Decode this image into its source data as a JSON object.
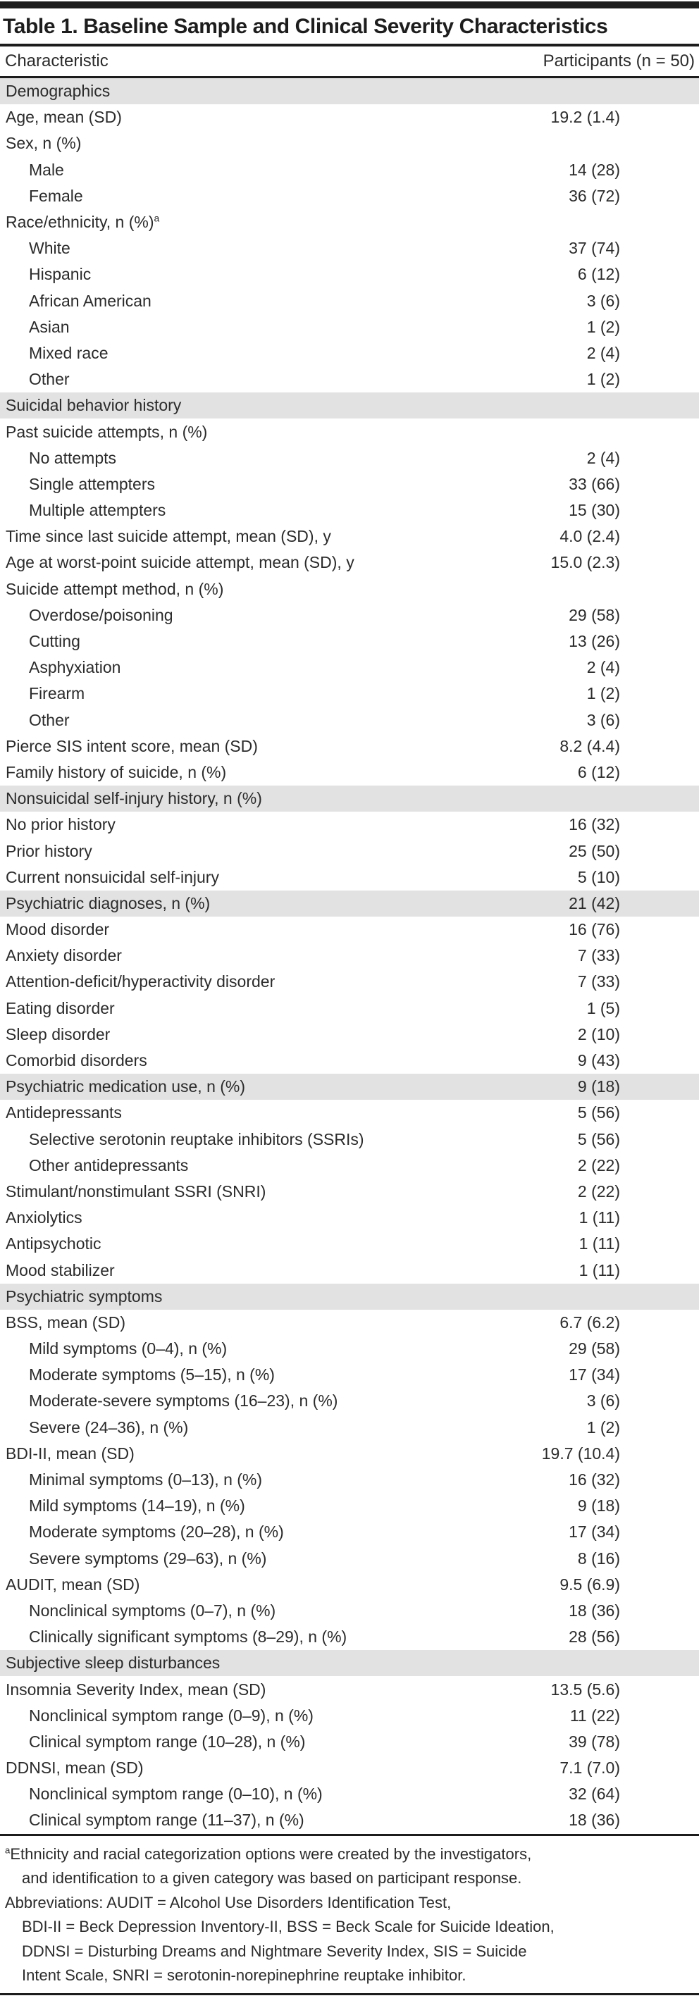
{
  "title": "Table 1. Baseline Sample and Clinical Severity Characteristics",
  "header": {
    "characteristic": "Characteristic",
    "participants": "Participants (n = 50)"
  },
  "rows": [
    {
      "type": "section",
      "indent": 0,
      "label": "Demographics",
      "value": ""
    },
    {
      "type": "row",
      "indent": 0,
      "label": "Age, mean (SD)",
      "value": "19.2 (1.4)"
    },
    {
      "type": "row",
      "indent": 0,
      "label": "Sex, n (%)",
      "value": ""
    },
    {
      "type": "row",
      "indent": 1,
      "label": "Male",
      "value": "14 (28)"
    },
    {
      "type": "row",
      "indent": 1,
      "label": "Female",
      "value": "36 (72)"
    },
    {
      "type": "row",
      "indent": 0,
      "label": "Race/ethnicity, n (%)",
      "sup": "a",
      "value": ""
    },
    {
      "type": "row",
      "indent": 1,
      "label": "White",
      "value": "37 (74)"
    },
    {
      "type": "row",
      "indent": 1,
      "label": "Hispanic",
      "value": "6 (12)"
    },
    {
      "type": "row",
      "indent": 1,
      "label": "African American",
      "value": "3 (6)"
    },
    {
      "type": "row",
      "indent": 1,
      "label": "Asian",
      "value": "1 (2)"
    },
    {
      "type": "row",
      "indent": 1,
      "label": "Mixed race",
      "value": "2 (4)"
    },
    {
      "type": "row",
      "indent": 1,
      "label": "Other",
      "value": "1 (2)"
    },
    {
      "type": "section",
      "indent": 0,
      "label": "Suicidal behavior history",
      "value": ""
    },
    {
      "type": "row",
      "indent": 0,
      "label": "Past suicide attempts, n (%)",
      "value": ""
    },
    {
      "type": "row",
      "indent": 1,
      "label": "No attempts",
      "value": "2 (4)"
    },
    {
      "type": "row",
      "indent": 1,
      "label": "Single attempters",
      "value": "33 (66)"
    },
    {
      "type": "row",
      "indent": 1,
      "label": "Multiple attempters",
      "value": "15 (30)"
    },
    {
      "type": "row",
      "indent": 0,
      "label": "Time since last suicide attempt, mean (SD), y",
      "value": "4.0 (2.4)"
    },
    {
      "type": "row",
      "indent": 0,
      "label": "Age at worst-point suicide attempt, mean (SD), y",
      "value": "15.0 (2.3)"
    },
    {
      "type": "row",
      "indent": 0,
      "label": "Suicide attempt method, n (%)",
      "value": ""
    },
    {
      "type": "row",
      "indent": 1,
      "label": "Overdose/poisoning",
      "value": "29 (58)"
    },
    {
      "type": "row",
      "indent": 1,
      "label": "Cutting",
      "value": "13 (26)"
    },
    {
      "type": "row",
      "indent": 1,
      "label": "Asphyxiation",
      "value": "2 (4)"
    },
    {
      "type": "row",
      "indent": 1,
      "label": "Firearm",
      "value": "1 (2)"
    },
    {
      "type": "row",
      "indent": 1,
      "label": "Other",
      "value": "3 (6)"
    },
    {
      "type": "row",
      "indent": 0,
      "label": "Pierce SIS intent score, mean (SD)",
      "value": "8.2 (4.4)"
    },
    {
      "type": "row",
      "indent": 0,
      "label": "Family history of suicide, n (%)",
      "value": "6 (12)"
    },
    {
      "type": "section",
      "indent": 0,
      "label": "Nonsuicidal self-injury history, n (%)",
      "value": ""
    },
    {
      "type": "row",
      "indent": 0,
      "label": "No prior history",
      "value": "16 (32)"
    },
    {
      "type": "row",
      "indent": 0,
      "label": "Prior history",
      "value": "25 (50)"
    },
    {
      "type": "row",
      "indent": 0,
      "label": "Current nonsuicidal self-injury",
      "value": "5 (10)"
    },
    {
      "type": "section",
      "indent": 0,
      "label": "Psychiatric diagnoses, n (%)",
      "value": "21 (42)"
    },
    {
      "type": "row",
      "indent": 0,
      "label": "Mood disorder",
      "value": "16 (76)"
    },
    {
      "type": "row",
      "indent": 0,
      "label": "Anxiety disorder",
      "value": "7 (33)"
    },
    {
      "type": "row",
      "indent": 0,
      "label": "Attention-deficit/hyperactivity disorder",
      "value": "7 (33)"
    },
    {
      "type": "row",
      "indent": 0,
      "label": "Eating disorder",
      "value": "1 (5)"
    },
    {
      "type": "row",
      "indent": 0,
      "label": "Sleep disorder",
      "value": "2 (10)"
    },
    {
      "type": "row",
      "indent": 0,
      "label": "Comorbid disorders",
      "value": "9 (43)"
    },
    {
      "type": "section",
      "indent": 0,
      "label": "Psychiatric medication use, n (%)",
      "value": "9 (18)"
    },
    {
      "type": "row",
      "indent": 0,
      "label": "Antidepressants",
      "value": "5 (56)"
    },
    {
      "type": "row",
      "indent": 1,
      "label": "Selective serotonin reuptake inhibitors (SSRIs)",
      "value": "5 (56)"
    },
    {
      "type": "row",
      "indent": 1,
      "label": "Other antidepressants",
      "value": "2 (22)"
    },
    {
      "type": "row",
      "indent": 0,
      "label": "Stimulant/nonstimulant SSRI (SNRI)",
      "value": "2 (22)"
    },
    {
      "type": "row",
      "indent": 0,
      "label": "Anxiolytics",
      "value": "1 (11)"
    },
    {
      "type": "row",
      "indent": 0,
      "label": "Antipsychotic",
      "value": "1 (11)"
    },
    {
      "type": "row",
      "indent": 0,
      "label": "Mood stabilizer",
      "value": "1 (11)"
    },
    {
      "type": "section",
      "indent": 0,
      "label": "Psychiatric symptoms",
      "value": ""
    },
    {
      "type": "row",
      "indent": 0,
      "label": "BSS, mean (SD)",
      "value": "6.7 (6.2)"
    },
    {
      "type": "row",
      "indent": 1,
      "label": "Mild symptoms (0–4), n (%)",
      "value": "29 (58)"
    },
    {
      "type": "row",
      "indent": 1,
      "label": "Moderate symptoms (5–15), n (%)",
      "value": "17 (34)"
    },
    {
      "type": "row",
      "indent": 1,
      "label": "Moderate-severe symptoms (16–23), n (%)",
      "value": "3 (6)"
    },
    {
      "type": "row",
      "indent": 1,
      "label": "Severe (24–36), n (%)",
      "value": "1 (2)"
    },
    {
      "type": "row",
      "indent": 0,
      "label": "BDI-II, mean (SD)",
      "value": "19.7 (10.4)"
    },
    {
      "type": "row",
      "indent": 1,
      "label": "Minimal symptoms (0–13), n (%)",
      "value": "16 (32)"
    },
    {
      "type": "row",
      "indent": 1,
      "label": "Mild symptoms (14–19), n (%)",
      "value": "9 (18)"
    },
    {
      "type": "row",
      "indent": 1,
      "label": "Moderate symptoms (20–28), n (%)",
      "value": "17 (34)"
    },
    {
      "type": "row",
      "indent": 1,
      "label": "Severe symptoms (29–63), n (%)",
      "value": "8 (16)"
    },
    {
      "type": "row",
      "indent": 0,
      "label": "AUDIT, mean (SD)",
      "value": "9.5 (6.9)"
    },
    {
      "type": "row",
      "indent": 1,
      "label": "Nonclinical symptoms (0–7), n (%)",
      "value": "18 (36)"
    },
    {
      "type": "row",
      "indent": 1,
      "label": "Clinically significant symptoms (8–29), n (%)",
      "value": "28 (56)"
    },
    {
      "type": "section",
      "indent": 0,
      "label": "Subjective sleep disturbances",
      "value": ""
    },
    {
      "type": "row",
      "indent": 0,
      "label": "Insomnia Severity Index, mean (SD)",
      "value": "13.5 (5.6)"
    },
    {
      "type": "row",
      "indent": 1,
      "label": "Nonclinical symptom range (0–9), n (%)",
      "value": "11 (22)"
    },
    {
      "type": "row",
      "indent": 1,
      "label": "Clinical symptom range (10–28), n (%)",
      "value": "39 (78)"
    },
    {
      "type": "row",
      "indent": 0,
      "label": "DDNSI, mean (SD)",
      "value": "7.1 (7.0)"
    },
    {
      "type": "row",
      "indent": 1,
      "label": "Nonclinical symptom range (0–10), n (%)",
      "value": "32 (64)"
    },
    {
      "type": "row",
      "indent": 1,
      "label": "Clinical symptom range (11–37), n (%)",
      "value": "18 (36)"
    }
  ],
  "footnotes": [
    {
      "sup": "a",
      "lines": [
        "Ethnicity and racial categorization options were created by the investigators,",
        "and identification to a given category was based on participant response."
      ]
    },
    {
      "lines": [
        "Abbreviations: AUDIT = Alcohol Use Disorders Identification Test,",
        "BDI-II = Beck Depression Inventory-II, BSS = Beck Scale for Suicide Ideation,",
        "DDNSI = Disturbing Dreams and Nightmare Severity Index, SIS = Suicide",
        "Intent Scale, SNRI = serotonin-norepinephrine reuptake inhibitor."
      ]
    }
  ]
}
